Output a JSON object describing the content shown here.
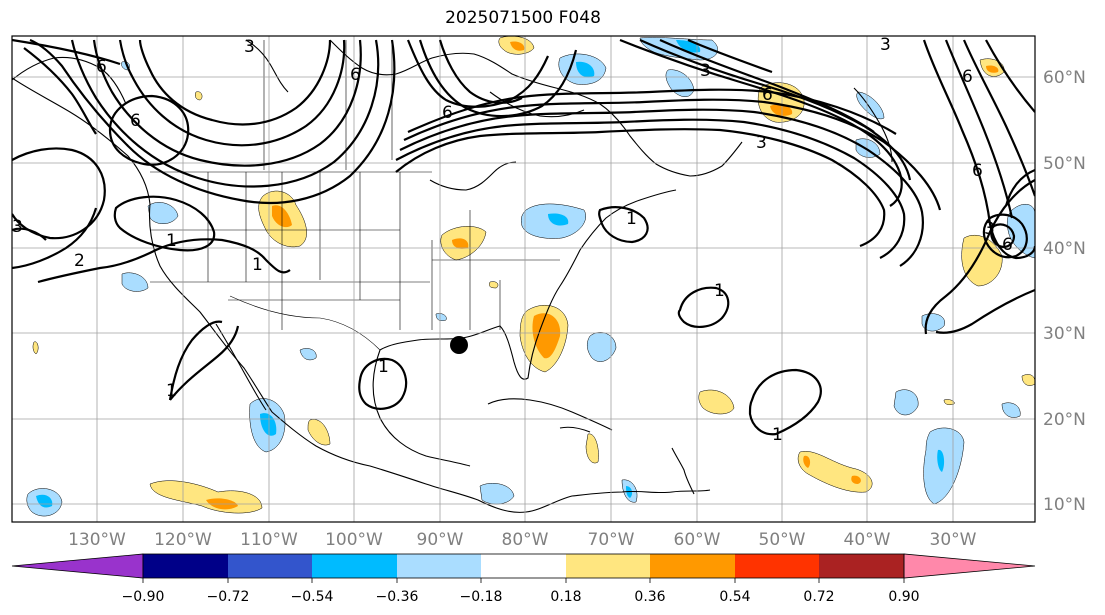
{
  "title": "2025071500 F048",
  "longitude_labels": [
    "130°W",
    "120°W",
    "110°W",
    "100°W",
    "90°W",
    "80°W",
    "70°W",
    "60°W",
    "50°W",
    "40°W",
    "30°W"
  ],
  "latitude_labels": [
    "60°N",
    "50°N",
    "40°N",
    "30°N",
    "20°N",
    "10°N"
  ],
  "colorbar": {
    "tick_labels": [
      "−0.90",
      "−0.72",
      "−0.54",
      "−0.36",
      "−0.18",
      "0.18",
      "0.36",
      "0.54",
      "0.72",
      "0.90"
    ],
    "colors": [
      "#9933cc",
      "#000088",
      "#3355cc",
      "#00bbff",
      "#aaddff",
      "#ffffff",
      "#ffe680",
      "#ff9900",
      "#ff3300",
      "#aa2222",
      "#ff88aa"
    ]
  },
  "contour_labels": [
    "6",
    "3",
    "6",
    "6",
    "6",
    "3",
    "3",
    "3",
    "6",
    "3",
    "6",
    "2",
    "1",
    "1",
    "1",
    "1",
    "1",
    "1",
    "1",
    "3",
    "6",
    "6"
  ],
  "map_colors": {
    "positive_light": "#ffe680",
    "positive_mid": "#ff9900",
    "negative_light": "#aaddff",
    "negative_mid": "#00bbff",
    "grid": "#a0a0a0"
  }
}
